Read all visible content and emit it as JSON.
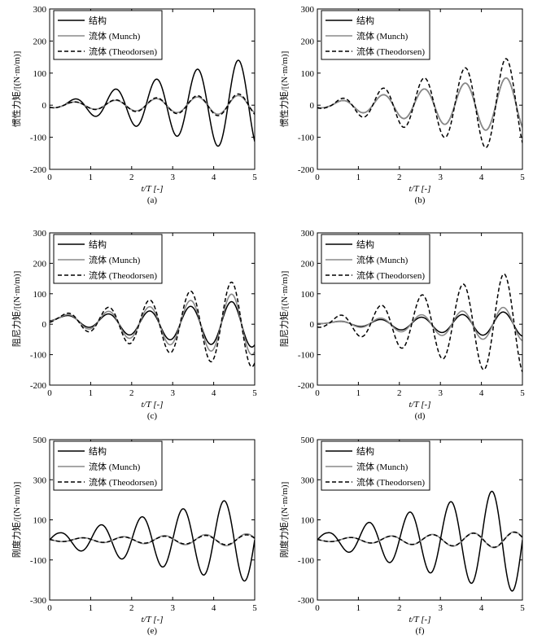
{
  "chart_data": [
    {
      "type": "line",
      "panel_label": "(a)",
      "xlabel": "t/T [-]",
      "ylabel": "惯性力矩/[(N·m/m)]",
      "xlim": [
        0,
        5
      ],
      "ylim": [
        -200,
        300
      ],
      "xticks": [
        0,
        1,
        2,
        3,
        4,
        5
      ],
      "yticks": [
        -200,
        -100,
        0,
        100,
        200,
        300
      ],
      "legend_position": "top-left",
      "series": [
        {
          "name": "结构",
          "style": "solid",
          "color": "#000000",
          "amp0": 8,
          "amp1": 140,
          "omega": 6.2832,
          "phase": 0.35,
          "decay": 2.0,
          "offset": 0
        },
        {
          "name": "流体 (Munch)",
          "style": "solid",
          "color": "#8a8a8a",
          "amp0": 8,
          "amp1": 30,
          "omega": 6.2832,
          "phase": 0.35,
          "decay": 2.0,
          "offset": 0
        },
        {
          "name": "流体 (Theodorsen)",
          "style": "dashed",
          "color": "#000000",
          "amp0": 8,
          "amp1": 35,
          "omega": 6.2832,
          "phase": 0.35,
          "decay": 2.0,
          "offset": 0
        }
      ]
    },
    {
      "type": "line",
      "panel_label": "(b)",
      "xlabel": "t/T [-]",
      "ylabel": "惯性力矩/[(N·m/m)]",
      "xlim": [
        0,
        5
      ],
      "ylim": [
        -200,
        300
      ],
      "xticks": [
        0,
        1,
        2,
        3,
        4,
        5
      ],
      "yticks": [
        -200,
        -100,
        0,
        100,
        200,
        300
      ],
      "legend_position": "top-left",
      "series": [
        {
          "name": "结构",
          "style": "solid",
          "color": "#000000",
          "amp0": 8,
          "amp1": 85,
          "omega": 6.2832,
          "phase": 0.35,
          "decay": 2.0,
          "offset": 0
        },
        {
          "name": "流体 (Munch)",
          "style": "solid",
          "color": "#8a8a8a",
          "amp0": 8,
          "amp1": 85,
          "omega": 6.2832,
          "phase": 0.35,
          "decay": 2.0,
          "offset": 0
        },
        {
          "name": "流体 (Theodorsen)",
          "style": "dashed",
          "color": "#000000",
          "amp0": 10,
          "amp1": 145,
          "omega": 6.2832,
          "phase": 0.35,
          "decay": 2.0,
          "offset": 0
        }
      ]
    },
    {
      "type": "line",
      "panel_label": "(c)",
      "xlabel": "t/T [-]",
      "ylabel": "阻尼力矩/[(N·m/m)]",
      "xlim": [
        0,
        5
      ],
      "ylim": [
        -200,
        300
      ],
      "xticks": [
        0,
        1,
        2,
        3,
        4,
        5
      ],
      "yticks": [
        -200,
        -100,
        0,
        100,
        200,
        300
      ],
      "legend_position": "top-left",
      "series": [
        {
          "name": "结构",
          "style": "solid",
          "color": "#000000",
          "amp0": 10,
          "amp1": 75,
          "omega": 6.2832,
          "phase": 0.18,
          "decay": 2.0,
          "offset": 20
        },
        {
          "name": "流体 (Munch)",
          "style": "solid",
          "color": "#8a8a8a",
          "amp0": 12,
          "amp1": 100,
          "omega": 6.2832,
          "phase": 0.18,
          "decay": 2.0,
          "offset": 20
        },
        {
          "name": "流体 (Theodorsen)",
          "style": "dashed",
          "color": "#000000",
          "amp0": 15,
          "amp1": 140,
          "omega": 6.2832,
          "phase": 0.18,
          "decay": 2.0,
          "offset": 20
        }
      ]
    },
    {
      "type": "line",
      "panel_label": "(d)",
      "xlabel": "t/T [-]",
      "ylabel": "阻尼力矩/[(N·m/m)]",
      "xlim": [
        0,
        5
      ],
      "ylim": [
        -200,
        300
      ],
      "xticks": [
        0,
        1,
        2,
        3,
        4,
        5
      ],
      "yticks": [
        -200,
        -100,
        0,
        100,
        200,
        300
      ],
      "legend_position": "top-left",
      "series": [
        {
          "name": "结构",
          "style": "solid",
          "color": "#000000",
          "amp0": 3,
          "amp1": 40,
          "omega": 6.2832,
          "phase": 0.28,
          "decay": 2.0,
          "offset": 5
        },
        {
          "name": "流体 (Munch)",
          "style": "solid",
          "color": "#8a8a8a",
          "amp0": 3,
          "amp1": 55,
          "omega": 6.2832,
          "phase": 0.28,
          "decay": 2.0,
          "offset": 5
        },
        {
          "name": "流体 (Theodorsen)",
          "style": "dashed",
          "color": "#000000",
          "amp0": 15,
          "amp1": 165,
          "omega": 6.2832,
          "phase": 0.3,
          "decay": 2.0,
          "offset": 5
        }
      ]
    },
    {
      "type": "line",
      "panel_label": "(e)",
      "xlabel": "t/T [-]",
      "ylabel": "刚度力矩/[(N·m/m)]",
      "xlim": [
        0,
        5
      ],
      "ylim": [
        -300,
        500
      ],
      "xticks": [
        0,
        1,
        2,
        3,
        4,
        5
      ],
      "yticks": [
        -300,
        -100,
        100,
        300,
        500
      ],
      "legend_position": "top-left",
      "series": [
        {
          "name": "结构",
          "style": "solid",
          "color": "#000000",
          "amp0": 35,
          "amp1": 205,
          "omega": 6.2832,
          "phase": 0.0,
          "decay": 2.0,
          "offset": 0
        },
        {
          "name": "流体 (Munch)",
          "style": "solid",
          "color": "#8a8a8a",
          "amp0": 8,
          "amp1": 30,
          "omega": 6.2832,
          "phase": 0.55,
          "decay": 2.0,
          "offset": 0
        },
        {
          "name": "流体 (Theodorsen)",
          "style": "dashed",
          "color": "#000000",
          "amp0": 8,
          "amp1": 25,
          "omega": 6.2832,
          "phase": 0.55,
          "decay": 2.0,
          "offset": 0
        }
      ]
    },
    {
      "type": "line",
      "panel_label": "(f)",
      "xlabel": "t/T [-]",
      "ylabel": "刚度力矩/[(N·m/m)]",
      "xlim": [
        0,
        5
      ],
      "ylim": [
        -300,
        500
      ],
      "xticks": [
        0,
        1,
        2,
        3,
        4,
        5
      ],
      "yticks": [
        -300,
        -100,
        100,
        300,
        500
      ],
      "legend_position": "top-left",
      "series": [
        {
          "name": "结构",
          "style": "solid",
          "color": "#000000",
          "amp0": 35,
          "amp1": 255,
          "omega": 6.2832,
          "phase": 0.0,
          "decay": 2.0,
          "offset": 0
        },
        {
          "name": "流体 (Munch)",
          "style": "solid",
          "color": "#8a8a8a",
          "amp0": 8,
          "amp1": 40,
          "omega": 6.2832,
          "phase": 0.55,
          "decay": 2.0,
          "offset": 0
        },
        {
          "name": "流体 (Theodorsen)",
          "style": "dashed",
          "color": "#000000",
          "amp0": 8,
          "amp1": 38,
          "omega": 6.2832,
          "phase": 0.55,
          "decay": 2.0,
          "offset": 0
        }
      ]
    }
  ]
}
